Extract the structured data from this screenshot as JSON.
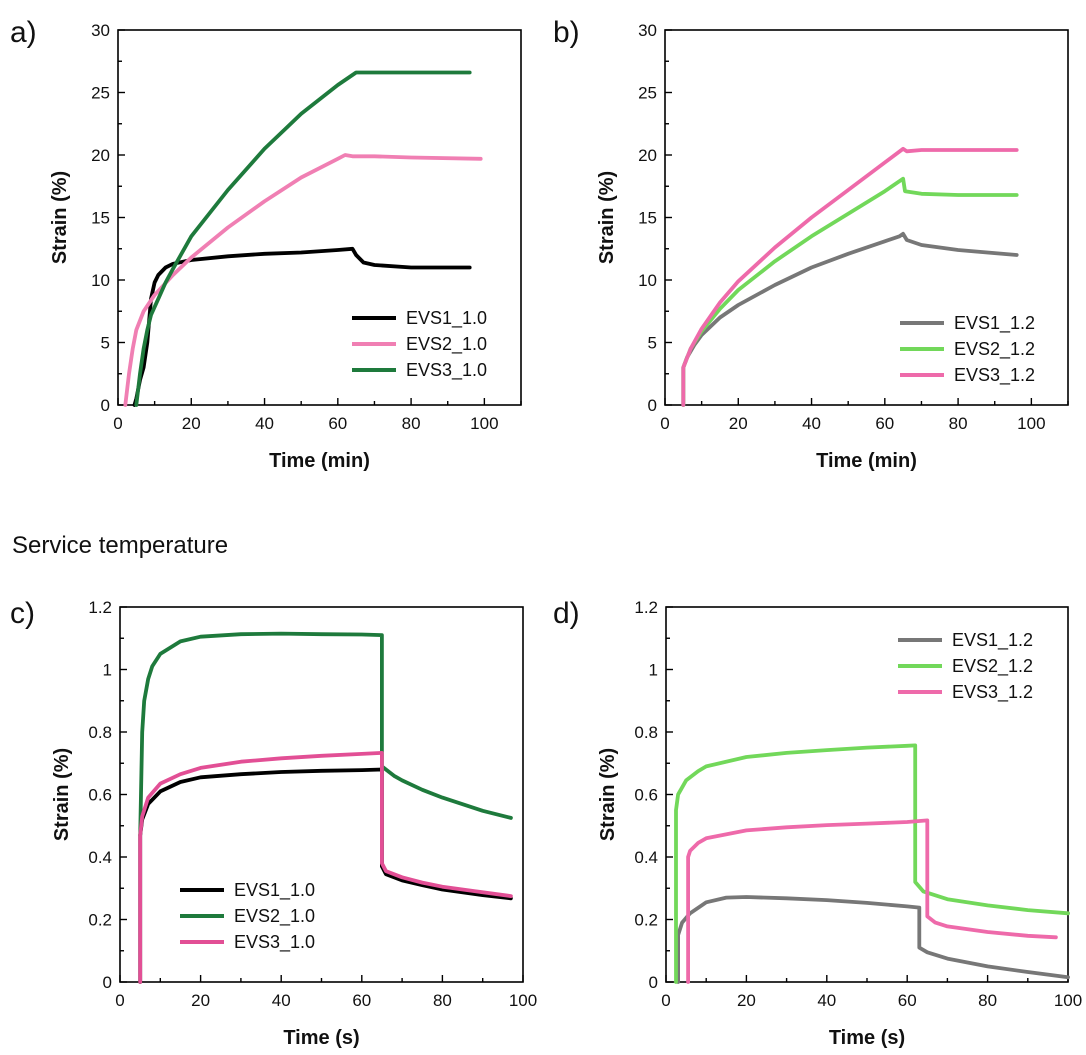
{
  "figure": {
    "section_heading": "Service temperature"
  },
  "chart_data": [
    {
      "panel_label": "a)",
      "type": "line",
      "xlabel": "Time (min)",
      "ylabel": "Strain (%)",
      "xlim": [
        0,
        110
      ],
      "ylim": [
        0,
        30
      ],
      "xticks": [
        0,
        20,
        40,
        60,
        80,
        100
      ],
      "yticks": [
        0,
        5,
        10,
        15,
        20,
        25,
        30
      ],
      "ytick_labels": [
        "0",
        "5",
        "10",
        "15",
        "20",
        "25",
        "30"
      ],
      "legend_position": "lower-right",
      "series": [
        {
          "name": "EVS1_1.0",
          "color": "#000000",
          "points": [
            [
              4.5,
              0
            ],
            [
              5,
              0.5
            ],
            [
              6,
              2
            ],
            [
              7,
              3
            ],
            [
              8,
              5
            ],
            [
              9,
              8.5
            ],
            [
              10,
              9.8
            ],
            [
              11,
              10.4
            ],
            [
              13,
              11.0
            ],
            [
              15,
              11.3
            ],
            [
              20,
              11.6
            ],
            [
              30,
              11.9
            ],
            [
              40,
              12.1
            ],
            [
              50,
              12.2
            ],
            [
              60,
              12.4
            ],
            [
              64,
              12.5
            ],
            [
              65,
              12.0
            ],
            [
              67,
              11.4
            ],
            [
              70,
              11.2
            ],
            [
              80,
              11.0
            ],
            [
              96,
              11.0
            ]
          ]
        },
        {
          "name": "EVS2_1.0",
          "color": "#f07fb3",
          "points": [
            [
              2,
              0
            ],
            [
              3,
              2.5
            ],
            [
              4,
              4.5
            ],
            [
              5,
              6
            ],
            [
              7,
              7.5
            ],
            [
              10,
              8.8
            ],
            [
              15,
              10.4
            ],
            [
              20,
              11.8
            ],
            [
              30,
              14.2
            ],
            [
              40,
              16.3
            ],
            [
              50,
              18.2
            ],
            [
              60,
              19.7
            ],
            [
              62,
              20.0
            ],
            [
              64,
              19.9
            ],
            [
              70,
              19.9
            ],
            [
              80,
              19.8
            ],
            [
              99,
              19.7
            ]
          ]
        },
        {
          "name": "EVS3_1.0",
          "color": "#1e7a3c",
          "points": [
            [
              5,
              0
            ],
            [
              6,
              2.5
            ],
            [
              7,
              4.5
            ],
            [
              8,
              6
            ],
            [
              9,
              7.2
            ],
            [
              11,
              8.5
            ],
            [
              13,
              9.8
            ],
            [
              15,
              10.9
            ],
            [
              20,
              13.5
            ],
            [
              30,
              17.2
            ],
            [
              40,
              20.5
            ],
            [
              50,
              23.3
            ],
            [
              60,
              25.6
            ],
            [
              65,
              26.6
            ],
            [
              70,
              26.6
            ],
            [
              80,
              26.6
            ],
            [
              96,
              26.6
            ]
          ]
        }
      ]
    },
    {
      "panel_label": "b)",
      "type": "line",
      "xlabel": "Time (min)",
      "ylabel": "Strain (%)",
      "xlim": [
        0,
        110
      ],
      "ylim": [
        0,
        30
      ],
      "xticks": [
        0,
        20,
        40,
        60,
        80,
        100
      ],
      "yticks": [
        0,
        5,
        10,
        15,
        20,
        25,
        30
      ],
      "ytick_labels": [
        "0",
        "5",
        "10",
        "15",
        "20",
        "25",
        "30"
      ],
      "legend_position": "lower-right",
      "series": [
        {
          "name": "EVS1_1.2",
          "color": "#777777",
          "points": [
            [
              5,
              0
            ],
            [
              5,
              3
            ],
            [
              6,
              3.8
            ],
            [
              8,
              4.8
            ],
            [
              10,
              5.6
            ],
            [
              15,
              7.0
            ],
            [
              20,
              8.0
            ],
            [
              30,
              9.6
            ],
            [
              40,
              11.0
            ],
            [
              50,
              12.1
            ],
            [
              60,
              13.1
            ],
            [
              64,
              13.5
            ],
            [
              65,
              13.7
            ],
            [
              66,
              13.2
            ],
            [
              70,
              12.8
            ],
            [
              80,
              12.4
            ],
            [
              96,
              12.0
            ]
          ]
        },
        {
          "name": "EVS2_1.2",
          "color": "#72d85a",
          "points": [
            [
              5,
              0
            ],
            [
              5,
              3
            ],
            [
              7,
              4.5
            ],
            [
              10,
              5.9
            ],
            [
              15,
              7.7
            ],
            [
              20,
              9.2
            ],
            [
              30,
              11.5
            ],
            [
              40,
              13.5
            ],
            [
              50,
              15.3
            ],
            [
              60,
              17.1
            ],
            [
              65,
              18.1
            ],
            [
              65.5,
              17.1
            ],
            [
              70,
              16.9
            ],
            [
              80,
              16.8
            ],
            [
              96,
              16.8
            ]
          ]
        },
        {
          "name": "EVS3_1.2",
          "color": "#ee6aaa",
          "points": [
            [
              5,
              0
            ],
            [
              5,
              3
            ],
            [
              7,
              4.5
            ],
            [
              10,
              6.1
            ],
            [
              15,
              8.2
            ],
            [
              20,
              9.9
            ],
            [
              30,
              12.6
            ],
            [
              40,
              15.0
            ],
            [
              50,
              17.2
            ],
            [
              60,
              19.4
            ],
            [
              65,
              20.5
            ],
            [
              66,
              20.3
            ],
            [
              70,
              20.4
            ],
            [
              80,
              20.4
            ],
            [
              96,
              20.4
            ]
          ]
        }
      ]
    },
    {
      "panel_label": "c)",
      "type": "line",
      "xlabel": "Time (s)",
      "ylabel": "Strain (%)",
      "xlim": [
        0,
        100
      ],
      "ylim": [
        0,
        1.2
      ],
      "xticks": [
        0,
        20,
        40,
        60,
        80,
        100
      ],
      "yticks": [
        0,
        0.2,
        0.4,
        0.6,
        0.8,
        1,
        1.2
      ],
      "ytick_labels": [
        "0",
        "0.2",
        "0.4",
        "0.6",
        "0.8",
        "1",
        "1.2"
      ],
      "legend_position": "lower-left",
      "series": [
        {
          "name": "EVS1_1.0",
          "color": "#000000",
          "points": [
            [
              5,
              0
            ],
            [
              5,
              0.47
            ],
            [
              5.5,
              0.52
            ],
            [
              7,
              0.57
            ],
            [
              10,
              0.61
            ],
            [
              15,
              0.64
            ],
            [
              20,
              0.655
            ],
            [
              30,
              0.665
            ],
            [
              40,
              0.672
            ],
            [
              50,
              0.676
            ],
            [
              60,
              0.678
            ],
            [
              65,
              0.68
            ],
            [
              65,
              0.37
            ],
            [
              66,
              0.345
            ],
            [
              70,
              0.325
            ],
            [
              75,
              0.31
            ],
            [
              80,
              0.296
            ],
            [
              90,
              0.278
            ],
            [
              97,
              0.268
            ]
          ]
        },
        {
          "name": "EVS2_1.0",
          "color": "#1e7a3c",
          "points": [
            [
              5,
              0.47
            ],
            [
              5.5,
              0.8
            ],
            [
              6,
              0.9
            ],
            [
              7,
              0.97
            ],
            [
              8,
              1.01
            ],
            [
              10,
              1.05
            ],
            [
              15,
              1.09
            ],
            [
              20,
              1.105
            ],
            [
              30,
              1.113
            ],
            [
              40,
              1.115
            ],
            [
              50,
              1.113
            ],
            [
              60,
              1.112
            ],
            [
              65,
              1.11
            ],
            [
              65,
              0.69
            ],
            [
              68,
              0.66
            ],
            [
              70,
              0.645
            ],
            [
              75,
              0.615
            ],
            [
              80,
              0.59
            ],
            [
              90,
              0.548
            ],
            [
              97,
              0.525
            ]
          ]
        },
        {
          "name": "EVS3_1.0",
          "color": "#e24f95",
          "points": [
            [
              5,
              0
            ],
            [
              5,
              0.47
            ],
            [
              5.5,
              0.53
            ],
            [
              7,
              0.59
            ],
            [
              10,
              0.635
            ],
            [
              15,
              0.665
            ],
            [
              20,
              0.685
            ],
            [
              30,
              0.705
            ],
            [
              40,
              0.716
            ],
            [
              50,
              0.724
            ],
            [
              60,
              0.73
            ],
            [
              65,
              0.733
            ],
            [
              65,
              0.38
            ],
            [
              66,
              0.355
            ],
            [
              70,
              0.335
            ],
            [
              75,
              0.318
            ],
            [
              80,
              0.305
            ],
            [
              90,
              0.287
            ],
            [
              97,
              0.275
            ]
          ]
        }
      ]
    },
    {
      "panel_label": "d)",
      "type": "line",
      "xlabel": "Time (s)",
      "ylabel": "Strain (%)",
      "xlim": [
        0,
        100
      ],
      "ylim": [
        0,
        1.2
      ],
      "xticks": [
        0,
        20,
        40,
        60,
        80,
        100
      ],
      "yticks": [
        0,
        0.2,
        0.4,
        0.6,
        0.8,
        1,
        1.2
      ],
      "ytick_labels": [
        "0",
        "0.2",
        "0.4",
        "0.6",
        "0.8",
        "1",
        "1.2"
      ],
      "legend_position": "top-right",
      "series": [
        {
          "name": "EVS1_1.2",
          "color": "#777777",
          "points": [
            [
              3,
              0
            ],
            [
              3,
              0.15
            ],
            [
              4,
              0.19
            ],
            [
              6,
              0.22
            ],
            [
              10,
              0.255
            ],
            [
              15,
              0.27
            ],
            [
              20,
              0.272
            ],
            [
              30,
              0.268
            ],
            [
              40,
              0.262
            ],
            [
              50,
              0.253
            ],
            [
              60,
              0.242
            ],
            [
              63,
              0.238
            ],
            [
              63,
              0.11
            ],
            [
              65,
              0.095
            ],
            [
              70,
              0.075
            ],
            [
              80,
              0.05
            ],
            [
              90,
              0.032
            ],
            [
              100,
              0.015
            ]
          ]
        },
        {
          "name": "EVS2_1.2",
          "color": "#72d85a",
          "points": [
            [
              2.5,
              0
            ],
            [
              2.5,
              0.55
            ],
            [
              3,
              0.6
            ],
            [
              5,
              0.645
            ],
            [
              8,
              0.675
            ],
            [
              10,
              0.69
            ],
            [
              20,
              0.72
            ],
            [
              30,
              0.733
            ],
            [
              40,
              0.742
            ],
            [
              50,
              0.75
            ],
            [
              60,
              0.756
            ],
            [
              62,
              0.757
            ],
            [
              62,
              0.32
            ],
            [
              64,
              0.29
            ],
            [
              70,
              0.265
            ],
            [
              80,
              0.245
            ],
            [
              90,
              0.23
            ],
            [
              100,
              0.22
            ]
          ]
        },
        {
          "name": "EVS3_1.2",
          "color": "#ee6aaa",
          "points": [
            [
              5.5,
              0
            ],
            [
              5.5,
              0.4
            ],
            [
              6,
              0.42
            ],
            [
              8,
              0.445
            ],
            [
              10,
              0.46
            ],
            [
              20,
              0.485
            ],
            [
              30,
              0.495
            ],
            [
              40,
              0.502
            ],
            [
              50,
              0.507
            ],
            [
              60,
              0.512
            ],
            [
              65,
              0.517
            ],
            [
              65,
              0.21
            ],
            [
              67,
              0.19
            ],
            [
              70,
              0.178
            ],
            [
              80,
              0.16
            ],
            [
              90,
              0.148
            ],
            [
              97,
              0.143
            ]
          ]
        }
      ]
    }
  ]
}
